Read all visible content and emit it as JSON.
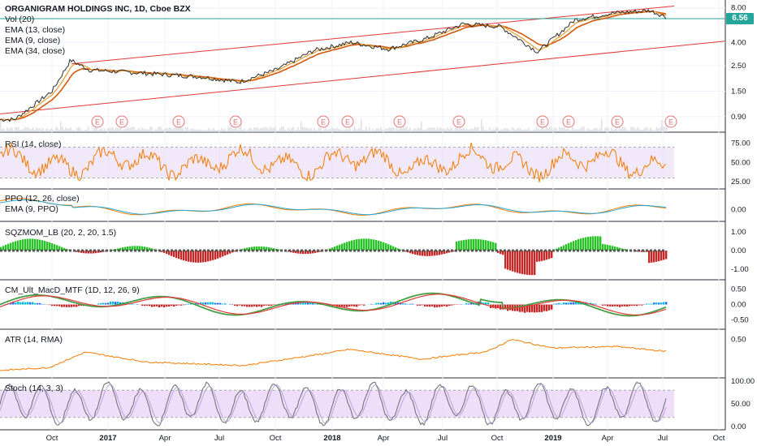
{
  "header": {
    "title": "ORGANIGRAM HOLDINGS INC, 1D, Cboe BZX",
    "indicators": [
      "Vol (20)",
      "EMA (13, close)",
      "EMA (9, close)",
      "EMA (34, close)"
    ]
  },
  "current_price": "6.56",
  "colors": {
    "price": "#2c2c2c",
    "ema_fast": "#e6a23c",
    "ema_slow": "#d3580a",
    "channel": "#e53935",
    "rsi": "#f57c00",
    "rsi_band": "#e8d8f5",
    "ppo": "#f57c00",
    "ppo_signal": "#26a6d6",
    "sqz_up": "#26c226",
    "sqz_down": "#c62828",
    "atr": "#f57c00",
    "stoch": "#757575",
    "stoch_band": "#e3c8f5",
    "price_badge": "#26a69a",
    "earnings": "#e57373"
  },
  "x_axis": {
    "labels": [
      "Oct",
      "2017",
      "Apr",
      "Jul",
      "Oct",
      "2018",
      "Apr",
      "Jul",
      "Oct",
      "2019",
      "Apr",
      "Jul",
      "Oct"
    ],
    "bold": [
      "2017",
      "2018",
      "2019"
    ]
  },
  "earnings_marker": "E",
  "panes": [
    {
      "id": "rsi",
      "label": "RSI (14, close)",
      "ticks": [
        "75.00",
        "50.00",
        "25.00"
      ]
    },
    {
      "id": "ppo",
      "label_lines": [
        "PPO (12, 26, close)",
        "EMA (9, PPO)"
      ],
      "ticks": [
        "0.00"
      ]
    },
    {
      "id": "sqz",
      "label": "SQZMOM_LB (20, 2, 20, 1.5)",
      "ticks": [
        "1.00",
        "0.00",
        "-1.00"
      ]
    },
    {
      "id": "macd",
      "label": "CM_Ult_MacD_MTF (1D, 12, 26, 9)",
      "ticks": [
        "0.50",
        "0.00",
        "-0.50"
      ]
    },
    {
      "id": "atr",
      "label": "ATR (14, RMA)",
      "ticks": [
        "0.50"
      ]
    },
    {
      "id": "stoch",
      "label": "Stoch (14, 3, 3)",
      "ticks": [
        "100.00",
        "50.00",
        "0.00"
      ]
    }
  ],
  "chart_data": {
    "type": "line",
    "title": "ORGANIGRAM HOLDINGS INC, 1D, Cboe BZX",
    "y_scale": "log",
    "y_ticks": [
      "8.00",
      "6.56",
      "4.00",
      "2.50",
      "1.50",
      "0.90"
    ],
    "ylim": [
      0.75,
      8.5
    ],
    "series": [
      {
        "name": "Price",
        "x": [
          "2016-08",
          "2016-10",
          "2016-11",
          "2016-12",
          "2017-02",
          "2017-04",
          "2017-06",
          "2017-08",
          "2017-10",
          "2017-12",
          "2018-02",
          "2018-04",
          "2018-06",
          "2018-08",
          "2018-10",
          "2018-12",
          "2019-02",
          "2019-04",
          "2019-06",
          "2019-07"
        ],
        "values": [
          0.85,
          1.5,
          2.8,
          2.3,
          2.2,
          2.1,
          2.0,
          1.8,
          2.3,
          3.4,
          4.0,
          3.5,
          4.3,
          5.8,
          5.5,
          3.3,
          6.3,
          7.2,
          7.6,
          6.56
        ]
      }
    ]
  }
}
